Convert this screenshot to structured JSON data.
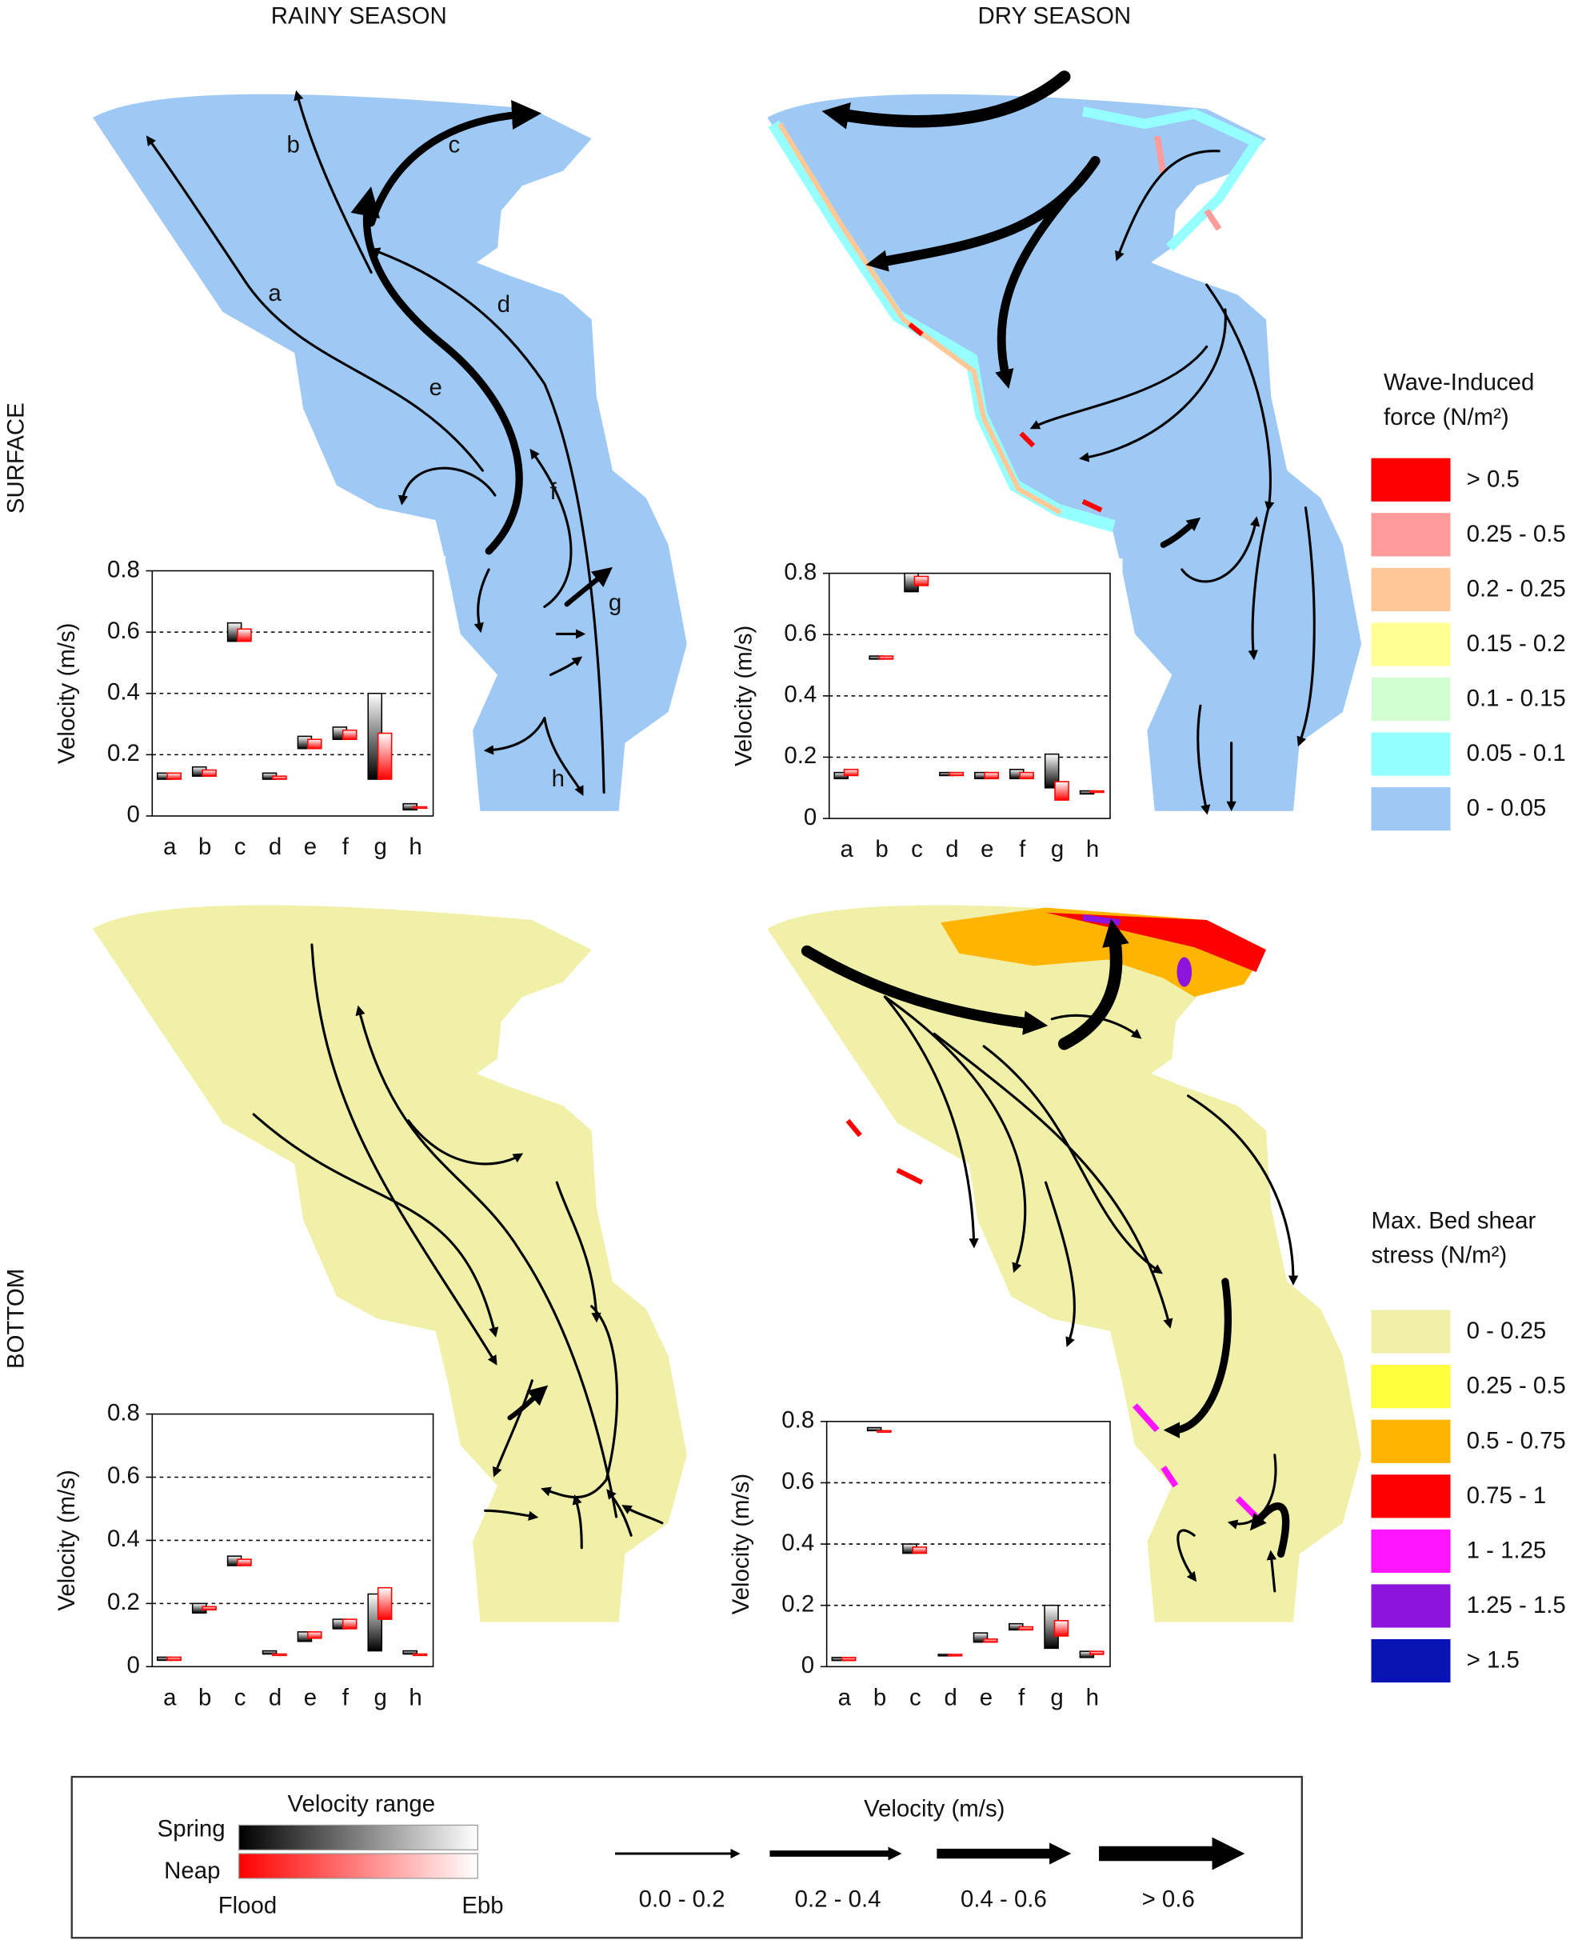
{
  "column_titles": [
    "RAINY SEASON",
    "DRY SEASON"
  ],
  "row_labels": [
    "SURFACE",
    "BOTTOM"
  ],
  "map_labels": [
    "a",
    "b",
    "c",
    "d",
    "e",
    "f",
    "g",
    "h"
  ],
  "chart_data": [
    {
      "type": "bar",
      "ylabel": "Velocity (m/s)",
      "categories": [
        "a",
        "b",
        "c",
        "d",
        "e",
        "f",
        "g",
        "h"
      ],
      "ylim": [
        0,
        0.8
      ],
      "yticks": [
        0,
        0.2,
        0.4,
        0.6,
        0.8
      ],
      "grid": true,
      "series": [
        {
          "color": "#000000",
          "low": [
            0.12,
            0.13,
            0.57,
            0.12,
            0.22,
            0.25,
            0.12,
            0.02
          ],
          "high": [
            0.14,
            0.16,
            0.63,
            0.14,
            0.26,
            0.29,
            0.4,
            0.04
          ]
        },
        {
          "color": "#ff0000",
          "low": [
            0.12,
            0.13,
            0.57,
            0.12,
            0.22,
            0.25,
            0.12,
            0.03
          ],
          "high": [
            0.14,
            0.15,
            0.61,
            0.13,
            0.25,
            0.28,
            0.27,
            0.03
          ]
        }
      ]
    },
    {
      "type": "bar",
      "ylabel": "Velocity (m/s)",
      "categories": [
        "a",
        "b",
        "c",
        "d",
        "e",
        "f",
        "g",
        "h"
      ],
      "ylim": [
        0,
        0.8
      ],
      "yticks": [
        0,
        0.2,
        0.4,
        0.6,
        0.8
      ],
      "grid": true,
      "series": [
        {
          "color": "#000000",
          "low": [
            0.13,
            0.52,
            0.74,
            0.14,
            0.13,
            0.13,
            0.1,
            0.08
          ],
          "high": [
            0.15,
            0.53,
            0.8,
            0.15,
            0.15,
            0.16,
            0.21,
            0.09
          ]
        },
        {
          "color": "#ff0000",
          "low": [
            0.14,
            0.52,
            0.76,
            0.14,
            0.13,
            0.13,
            0.06,
            0.09
          ],
          "high": [
            0.16,
            0.53,
            0.79,
            0.15,
            0.15,
            0.15,
            0.12,
            0.09
          ]
        }
      ]
    },
    {
      "type": "bar",
      "ylabel": "Velocity (m/s)",
      "categories": [
        "a",
        "b",
        "c",
        "d",
        "e",
        "f",
        "g",
        "h"
      ],
      "ylim": [
        0,
        0.8
      ],
      "yticks": [
        0,
        0.2,
        0.4,
        0.6,
        0.8
      ],
      "grid": true,
      "series": [
        {
          "color": "#000000",
          "low": [
            0.02,
            0.17,
            0.32,
            0.04,
            0.08,
            0.12,
            0.05,
            0.04
          ],
          "high": [
            0.03,
            0.2,
            0.35,
            0.05,
            0.11,
            0.15,
            0.23,
            0.05
          ]
        },
        {
          "color": "#ff0000",
          "low": [
            0.02,
            0.18,
            0.32,
            0.04,
            0.09,
            0.12,
            0.15,
            0.04
          ],
          "high": [
            0.03,
            0.19,
            0.34,
            0.04,
            0.11,
            0.15,
            0.25,
            0.04
          ]
        }
      ]
    },
    {
      "type": "bar",
      "ylabel": "Velocity (m/s)",
      "categories": [
        "a",
        "b",
        "c",
        "d",
        "e",
        "f",
        "g",
        "h"
      ],
      "ylim": [
        0,
        0.8
      ],
      "yticks": [
        0,
        0.2,
        0.4,
        0.6,
        0.8
      ],
      "grid": true,
      "series": [
        {
          "color": "#000000",
          "low": [
            0.02,
            0.77,
            0.37,
            0.04,
            0.08,
            0.12,
            0.06,
            0.03
          ],
          "high": [
            0.03,
            0.78,
            0.4,
            0.04,
            0.11,
            0.14,
            0.2,
            0.05
          ]
        },
        {
          "color": "#ff0000",
          "low": [
            0.02,
            0.77,
            0.37,
            0.04,
            0.08,
            0.12,
            0.1,
            0.04
          ],
          "high": [
            0.03,
            0.77,
            0.39,
            0.04,
            0.09,
            0.13,
            0.15,
            0.05
          ]
        }
      ]
    }
  ],
  "wave_legend": {
    "title": [
      "Wave-Induced",
      "force (N/m²)"
    ],
    "items": [
      {
        "label": "> 0.5",
        "color": "#ff0000"
      },
      {
        "label": "0.25 - 0.5",
        "color": "#ff9b9b"
      },
      {
        "label": "0.2 - 0.25",
        "color": "#ffc896"
      },
      {
        "label": "0.15 - 0.2",
        "color": "#ffff96"
      },
      {
        "label": "0.1 - 0.15",
        "color": "#d2ffd2"
      },
      {
        "label": "0.05 - 0.1",
        "color": "#96ffff"
      },
      {
        "label": "0 - 0.05",
        "color": "#9ec9f5"
      }
    ]
  },
  "shear_legend": {
    "title": [
      "Max. Bed shear",
      "stress (N/m²)"
    ],
    "items": [
      {
        "label": "0 - 0.25",
        "color": "#f0f0a8"
      },
      {
        "label": "0.25 - 0.5",
        "color": "#ffff3c"
      },
      {
        "label": "0.5 - 0.75",
        "color": "#ffb400"
      },
      {
        "label": "0.75 - 1",
        "color": "#ff0000"
      },
      {
        "label": "1 - 1.25",
        "color": "#ff14ff"
      },
      {
        "label": "1.25 - 1.5",
        "color": "#8c14dc"
      },
      {
        "label": "> 1.5",
        "color": "#0a14b4"
      }
    ]
  },
  "velocity_range_legend": {
    "title": "Velocity range",
    "rows": [
      "Spring",
      "Neap"
    ],
    "ends": [
      "Flood",
      "Ebb"
    ]
  },
  "arrow_legend": {
    "title": "Velocity (m/s)",
    "classes": [
      "0.0 - 0.2",
      "0.2 - 0.4",
      "0.4 - 0.6",
      "> 0.6"
    ]
  }
}
